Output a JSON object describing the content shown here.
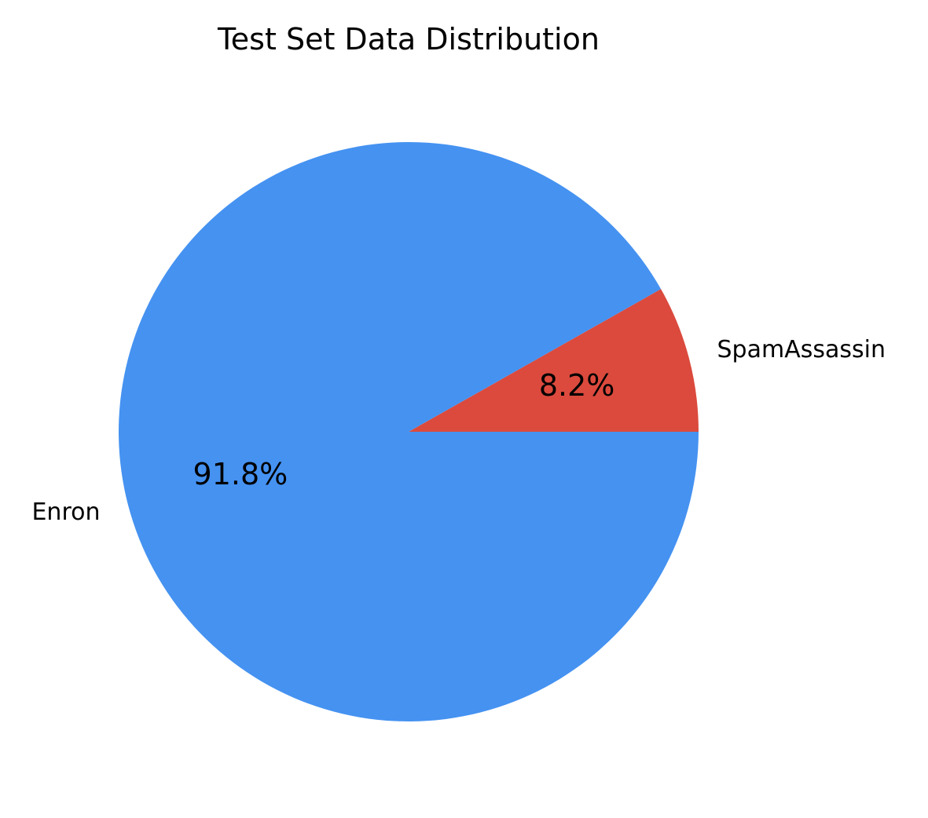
{
  "chart_data": {
    "type": "pie",
    "title": "Test Set Data Distribution",
    "slices": [
      {
        "label": "SpamAssassin",
        "value": 8.2,
        "pct_label": "8.2%",
        "color": "#DB4A3D"
      },
      {
        "label": "Enron",
        "value": 91.8,
        "pct_label": "91.8%",
        "color": "#4592F1"
      }
    ]
  }
}
